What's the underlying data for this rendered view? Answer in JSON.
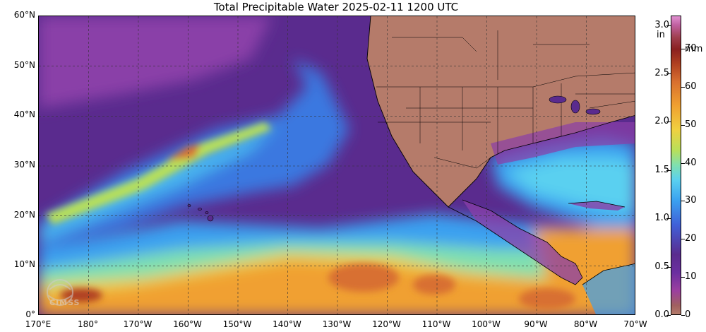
{
  "title": "Total Precipitable Water  2025-02-11 1200 UTC",
  "lat_labels": [
    "60°N",
    "50°N",
    "40°N",
    "30°N",
    "20°N",
    "10°N",
    "0°"
  ],
  "lon_labels": [
    "170°E",
    "180°",
    "170°W",
    "160°W",
    "150°W",
    "140°W",
    "130°W",
    "120°W",
    "110°W",
    "100°W",
    "90°W",
    "80°W",
    "70°W"
  ],
  "colorbar": {
    "unit_in": "in",
    "unit_mm": "mm",
    "in_ticks": [
      "3.0",
      "2.5",
      "2.0",
      "1.5",
      "1.0",
      "0.5",
      "0.0"
    ],
    "mm_ticks": [
      "70",
      "60",
      "50",
      "40",
      "30",
      "20",
      "10",
      "0"
    ]
  },
  "logo_text": "CIMSS",
  "colors": {
    "land_dry": "#b57b6a",
    "dry_air": "#5a2b8e",
    "moist_blue": "#3aa0f0",
    "wet_orange": "#f0a030",
    "very_wet": "#b04020"
  }
}
